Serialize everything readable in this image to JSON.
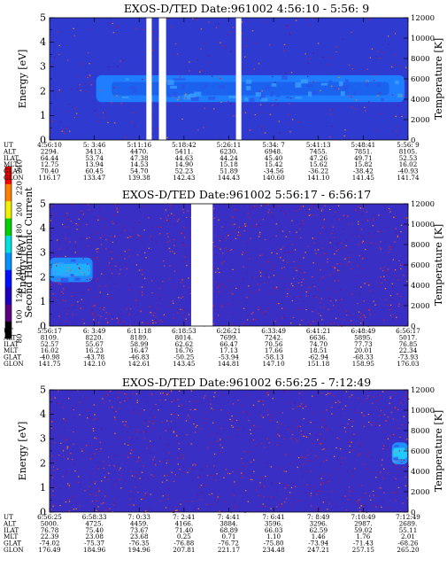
{
  "colorbar": {
    "label": "Second Harmonic Current",
    "ticks": [
      "80",
      "100",
      "120",
      "140",
      "160",
      "180",
      "200",
      "220",
      "240"
    ],
    "colors": [
      "#000000",
      "#5a0080",
      "#2000c0",
      "#0010ff",
      "#0090ff",
      "#00e0e0",
      "#00d000",
      "#f0f000",
      "#ff8000",
      "#ff0000"
    ]
  },
  "row_labels": [
    "UT",
    "ALT",
    "ILAT",
    "MLT",
    "GLAT",
    "GLON"
  ],
  "chart_data": [
    {
      "type": "heatmap",
      "title": "EXOS-D/TED   Date:961002   4:56:10 - 5:56: 9",
      "ylabel": "Energy [eV]",
      "y2label": "Temperature [K]",
      "ylim": [
        0,
        5
      ],
      "yticks": [
        "0",
        "1",
        "2",
        "3",
        "4",
        "5"
      ],
      "y2lim": [
        0,
        12000
      ],
      "y2ticks": [
        "0",
        "2000",
        "4000",
        "6000",
        "8000",
        "10000",
        "12000"
      ],
      "background": "#2f3ad0",
      "band": {
        "center_eV": 2.1,
        "half_width_eV": 0.55,
        "start": 0.13,
        "end": 0.99,
        "color": "#1f7dff",
        "core": "#1b62ee"
      },
      "data_gaps": [
        [
          0.27,
          0.285
        ],
        [
          0.305,
          0.325
        ],
        [
          0.52,
          0.535
        ]
      ],
      "points": "sparse",
      "times": [
        "4:56:10",
        "5: 3:46",
        "5:11:16",
        "5:18:42",
        "5:26:11",
        "5:34: 7",
        "5:41:13",
        "5:48:41",
        "5:56: 9"
      ],
      "rows": [
        [
          "2294.",
          "3413.",
          "4470.",
          "5411.",
          "6230.",
          "6948.",
          "7455.",
          "7851.",
          "8105."
        ],
        [
          "64.44",
          "53.74",
          "47.38",
          "44.63",
          "44.24",
          "45.40",
          "47.26",
          "49.71",
          "52.53"
        ],
        [
          "12.75",
          "13.94",
          "14.53",
          "14.90",
          "15.18",
          "15.42",
          "15.62",
          "15.82",
          "16.02"
        ],
        [
          "70.40",
          "60.45",
          "54.70",
          "52.23",
          "51.89",
          "-34.56",
          "-36.22",
          "-38.42",
          "-40.93"
        ],
        [
          "116.17",
          "133.47",
          "139.38",
          "142.43",
          "144.43",
          "140.60",
          "141.10",
          "141.45",
          "141.74"
        ]
      ]
    },
    {
      "type": "heatmap",
      "title": "EXOS-D/TED   Date:961002   5:56:17 - 6:56:17",
      "ylabel": "Energy [eV]",
      "y2label": "Temperature [K]",
      "ylim": [
        0,
        5
      ],
      "yticks": [
        "0",
        "1",
        "2",
        "3",
        "4",
        "5"
      ],
      "y2lim": [
        0,
        12000
      ],
      "y2ticks": [
        "0",
        "2000",
        "4000",
        "6000",
        "8000",
        "10000",
        "12000"
      ],
      "background": "#3a2fc4",
      "band": {
        "center_eV": 2.3,
        "half_width_eV": 0.5,
        "start": 0.0,
        "end": 0.12,
        "color": "#1f8aff",
        "core": "#1fb0ff"
      },
      "data_gaps": [
        [
          0.395,
          0.455
        ]
      ],
      "points": "dense",
      "times": [
        "5:56:17",
        "6: 3:49",
        "6:11:18",
        "6:18:53",
        "6:26:21",
        "6:33:49",
        "6:41:21",
        "6:48:49",
        "6:56:17"
      ],
      "rows": [
        [
          "8109.",
          "8220.",
          "8189.",
          "8014.",
          "7699.",
          "7242.",
          "6636.",
          "5895.",
          "5017."
        ],
        [
          "52.57",
          "55.67",
          "58.99",
          "62.62",
          "66.47",
          "70.56",
          "74.70",
          "77.73",
          "76.85"
        ],
        [
          "16.02",
          "16.23",
          "16.47",
          "16.76",
          "17.13",
          "17.66",
          "18.51",
          "20.01",
          "22.34"
        ],
        [
          "-40.98",
          "-43.78",
          "-46.83",
          "-50.25",
          "-53.94",
          "-58.13",
          "-62.94",
          "-68.33",
          "-73.93"
        ],
        [
          "141.75",
          "142.10",
          "142.61",
          "143.45",
          "144.81",
          "147.10",
          "151.18",
          "158.95",
          "176.03"
        ]
      ]
    },
    {
      "type": "heatmap",
      "title": "EXOS-D/TED   Date:961002   6:56:25 - 7:12:49",
      "ylabel": "Energy [eV]",
      "y2label": "Temperature [K]",
      "ylim": [
        0,
        5
      ],
      "yticks": [
        "0",
        "1",
        "2",
        "3",
        "4",
        "5"
      ],
      "y2lim": [
        0,
        12000
      ],
      "y2ticks": [
        "0",
        "2000",
        "4000",
        "6000",
        "8000",
        "10000",
        "12000"
      ],
      "background": "#3a2fc4",
      "band": {
        "center_eV": 2.4,
        "half_width_eV": 0.45,
        "start": 0.955,
        "end": 1.0,
        "color": "#1f90ff",
        "core": "#22c8ff"
      },
      "data_gaps": [],
      "points": "dense",
      "times": [
        "6:56:25",
        "6:58:33",
        "7: 0:33",
        "7: 2:41",
        "7: 4:41",
        "7: 6:41",
        "7: 8:49",
        "7:10:49",
        "7:12:49"
      ],
      "rows": [
        [
          "5000.",
          "4725.",
          "4459.",
          "4166.",
          "3884.",
          "3596.",
          "3296.",
          "2987.",
          "2689."
        ],
        [
          "76.78",
          "75.40",
          "73.67",
          "71.40",
          "68.89",
          "66.03",
          "62.59",
          "59.02",
          "55.11"
        ],
        [
          "22.39",
          "23.08",
          "23.68",
          "0.25",
          "0.71",
          "1.10",
          "1.46",
          "1.76",
          "2.01"
        ],
        [
          "-74.02",
          "-75.37",
          "-76.35",
          "-76.88",
          "-76.72",
          "-75.80",
          "-73.94",
          "-71.43",
          "-68.26"
        ],
        [
          "176.49",
          "184.96",
          "194.96",
          "207.81",
          "221.17",
          "234.48",
          "247.21",
          "257.15",
          "265.20"
        ]
      ]
    }
  ]
}
